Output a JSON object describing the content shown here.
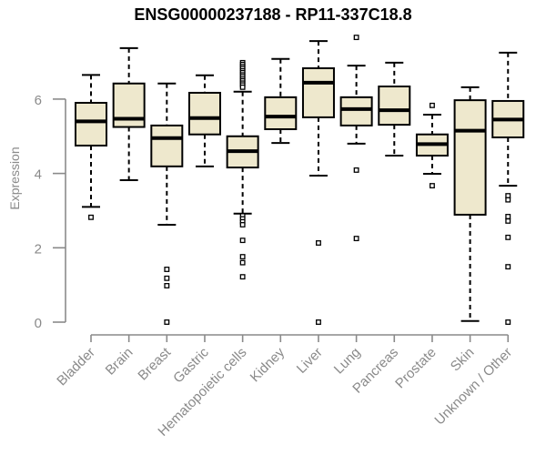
{
  "chart_data": {
    "type": "boxplot",
    "title": "ENSG00000237188 - RP11-337C18.8",
    "ylabel": "Expression",
    "xlabel": "",
    "ylim": [
      0,
      7.8
    ],
    "yticks": [
      0,
      2,
      4,
      6
    ],
    "grid": false,
    "legend": "none",
    "colors": {
      "box_fill": "#EEE8CD",
      "box_stroke": "#000000",
      "median": "#000000",
      "whisker": "#000000",
      "outlier_stroke": "#000000",
      "outlier_fill": "#FFFFFF",
      "axis": "#8A8A8A",
      "tick_label": "#8A8A8A",
      "title": "#000000",
      "background": "#FFFFFF"
    },
    "categories": [
      "Bladder",
      "Brain",
      "Breast",
      "Gastric",
      "Hematopoietic cells",
      "Kidney",
      "Liver",
      "Lung",
      "Pancreas",
      "Prostate",
      "Skin",
      "Unknown / Other"
    ],
    "boxes": [
      {
        "category": "Bladder",
        "whisker_low": 3.1,
        "q1": 4.75,
        "median": 5.4,
        "q3": 5.9,
        "whisker_high": 6.65,
        "outliers": [
          2.82
        ]
      },
      {
        "category": "Brain",
        "whisker_low": 3.82,
        "q1": 5.25,
        "median": 5.47,
        "q3": 6.42,
        "whisker_high": 7.37,
        "outliers": []
      },
      {
        "category": "Breast",
        "whisker_low": 2.62,
        "q1": 4.19,
        "median": 4.95,
        "q3": 5.29,
        "whisker_high": 6.42,
        "outliers": [
          1.42,
          1.18,
          0.98,
          0.0
        ]
      },
      {
        "category": "Gastric",
        "whisker_low": 4.19,
        "q1": 5.05,
        "median": 5.49,
        "q3": 6.17,
        "whisker_high": 6.64,
        "outliers": []
      },
      {
        "category": "Hematopoietic cells",
        "whisker_low": 2.92,
        "q1": 4.16,
        "median": 4.6,
        "q3": 5.0,
        "whisker_high": 6.2,
        "outliers": [
          6.98,
          6.93,
          6.87,
          6.82,
          6.76,
          6.71,
          6.65,
          6.6,
          6.54,
          6.49,
          6.43,
          6.38,
          6.32,
          2.86,
          2.78,
          2.7,
          2.62,
          2.2,
          1.76,
          1.6,
          1.22
        ]
      },
      {
        "category": "Kidney",
        "whisker_low": 4.82,
        "q1": 5.19,
        "median": 5.53,
        "q3": 6.05,
        "whisker_high": 7.08,
        "outliers": []
      },
      {
        "category": "Liver",
        "whisker_low": 3.94,
        "q1": 5.51,
        "median": 6.44,
        "q3": 6.83,
        "whisker_high": 7.56,
        "outliers": [
          2.13,
          0.0
        ]
      },
      {
        "category": "Lung",
        "whisker_low": 4.8,
        "q1": 5.29,
        "median": 5.73,
        "q3": 6.05,
        "whisker_high": 6.9,
        "outliers": [
          7.66,
          4.09,
          2.25
        ]
      },
      {
        "category": "Pancreas",
        "whisker_low": 4.48,
        "q1": 5.31,
        "median": 5.7,
        "q3": 6.34,
        "whisker_high": 6.98,
        "outliers": []
      },
      {
        "category": "Prostate",
        "whisker_low": 3.99,
        "q1": 4.48,
        "median": 4.79,
        "q3": 5.05,
        "whisker_high": 5.58,
        "outliers": [
          5.83,
          3.67
        ]
      },
      {
        "category": "Skin",
        "whisker_low": 0.03,
        "q1": 2.89,
        "median": 5.15,
        "q3": 5.97,
        "whisker_high": 6.32,
        "outliers": []
      },
      {
        "category": "Unknown / Other",
        "whisker_low": 3.67,
        "q1": 4.97,
        "median": 5.45,
        "q3": 5.95,
        "whisker_high": 7.25,
        "outliers": [
          3.4,
          3.29,
          2.84,
          2.72,
          2.28,
          1.49,
          0.0
        ]
      }
    ]
  }
}
